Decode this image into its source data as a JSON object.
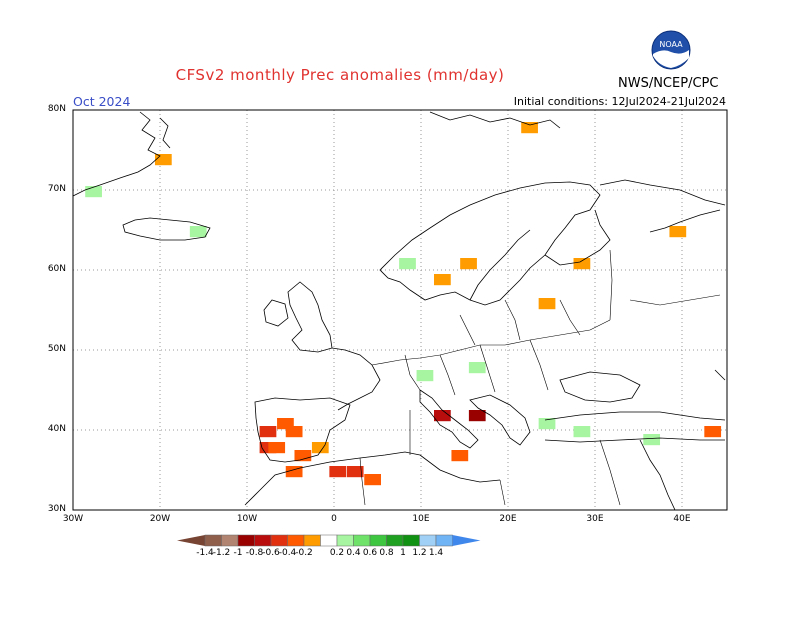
{
  "header": {
    "title": "CFSv2 monthly Prec anomalies (mm/day)",
    "agency": "NWS/NCEP/CPC",
    "logo_text": "NOAA",
    "month": "Oct 2024",
    "initial_conditions": "Initial conditions: 12Jul2024-21Jul2024"
  },
  "map": {
    "lat_labels": [
      "80N",
      "70N",
      "60N",
      "50N",
      "40N",
      "30N"
    ],
    "lon_labels": [
      "30W",
      "20W",
      "10W",
      "0",
      "10E",
      "20E",
      "30E",
      "40E"
    ],
    "lon_range": [
      -30,
      45
    ],
    "lat_range": [
      30,
      80
    ]
  },
  "colorbar": {
    "labels": [
      "-1.4",
      "-1.2",
      "-1",
      "-0.8",
      "-0.6",
      "-0.4",
      "-0.2",
      "0.2",
      "0.4",
      "0.6",
      "0.8",
      "1",
      "1.2",
      "1.4"
    ],
    "colors": [
      "#774433",
      "#8f5f4b",
      "#b08470",
      "#990000",
      "#b90d0d",
      "#e03010",
      "#ff5a00",
      "#ff9c00",
      "#ffffff",
      "#a7f5a0",
      "#6fe26a",
      "#3fc640",
      "#1fa020",
      "#119111",
      "#a0d0f5",
      "#70b4f5",
      "#4087ec"
    ]
  },
  "chart_data": {
    "type": "heatmap",
    "variable": "precipitation anomaly",
    "units": "mm/day",
    "bins": [
      -1.4,
      -1.2,
      -1,
      -0.8,
      -0.6,
      -0.4,
      -0.2,
      0.2,
      0.4,
      0.6,
      0.8,
      1,
      1.2,
      1.4
    ],
    "cells": [
      {
        "lon": -5,
        "lat": 40,
        "value": -0.5
      },
      {
        "lon": -6,
        "lat": 41,
        "value": -0.5
      },
      {
        "lon": -8,
        "lat": 40,
        "value": -0.7
      },
      {
        "lon": -8,
        "lat": 38,
        "value": -0.7
      },
      {
        "lon": -7,
        "lat": 38,
        "value": -0.5
      },
      {
        "lon": -4,
        "lat": 37,
        "value": -0.5
      },
      {
        "lon": -2,
        "lat": 38,
        "value": -0.3
      },
      {
        "lon": 0,
        "lat": 35,
        "value": -0.7
      },
      {
        "lon": 2,
        "lat": 35,
        "value": -0.7
      },
      {
        "lon": 4,
        "lat": 34,
        "value": -0.5
      },
      {
        "lon": -5,
        "lat": 35,
        "value": -0.5
      },
      {
        "lon": 12,
        "lat": 42,
        "value": -0.9
      },
      {
        "lon": 16,
        "lat": 42,
        "value": -1.1
      },
      {
        "lon": 14,
        "lat": 37,
        "value": -0.5
      },
      {
        "lon": 15,
        "lat": 61,
        "value": -0.3
      },
      {
        "lon": 12,
        "lat": 59,
        "value": -0.3
      },
      {
        "lon": 24,
        "lat": 56,
        "value": -0.3
      },
      {
        "lon": 28,
        "lat": 61,
        "value": -0.3
      },
      {
        "lon": 39,
        "lat": 65,
        "value": -0.3
      },
      {
        "lon": 43,
        "lat": 40,
        "value": -0.5
      },
      {
        "lon": -20,
        "lat": 74,
        "value": -0.3
      },
      {
        "lon": 22,
        "lat": 78,
        "value": -0.3
      },
      {
        "lon": 10,
        "lat": 47,
        "value": 0.3
      },
      {
        "lon": 16,
        "lat": 48,
        "value": 0.3
      },
      {
        "lon": 24,
        "lat": 41,
        "value": 0.3
      },
      {
        "lon": 28,
        "lat": 40,
        "value": 0.3
      },
      {
        "lon": 36,
        "lat": 39,
        "value": 0.3
      },
      {
        "lon": -28,
        "lat": 70,
        "value": 0.3
      },
      {
        "lon": -16,
        "lat": 65,
        "value": 0.3
      },
      {
        "lon": 8,
        "lat": 61,
        "value": 0.3
      }
    ]
  }
}
